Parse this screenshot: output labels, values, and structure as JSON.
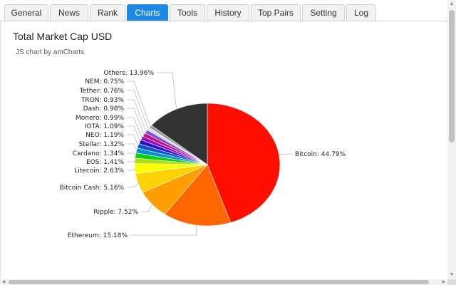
{
  "tabs": [
    {
      "label": "General",
      "active": false
    },
    {
      "label": "News",
      "active": false
    },
    {
      "label": "Rank",
      "active": false
    },
    {
      "label": "Charts",
      "active": true
    },
    {
      "label": "Tools",
      "active": false
    },
    {
      "label": "History",
      "active": false
    },
    {
      "label": "Top Pairs",
      "active": false
    },
    {
      "label": "Setting",
      "active": false
    },
    {
      "label": "Log",
      "active": false
    }
  ],
  "chart": {
    "title": "Total Market Cap USD",
    "subtitle": "JS chart by amCharts"
  },
  "chart_data": {
    "type": "pie",
    "title": "Total Market Cap USD",
    "unit": "%",
    "categories": [
      "Bitcoin",
      "Ethereum",
      "Ripple",
      "Bitcoin Cash",
      "Litecoin",
      "EOS",
      "Cardano",
      "Stellar",
      "NEO",
      "IOTA",
      "Monero",
      "Dash",
      "TRON",
      "Tether",
      "NEM",
      "Others"
    ],
    "values": [
      44.79,
      15.18,
      7.52,
      5.16,
      2.63,
      1.41,
      1.34,
      1.32,
      1.19,
      1.09,
      0.99,
      0.98,
      0.93,
      0.76,
      0.75,
      13.96
    ],
    "labels": [
      "Bitcoin: 44.79%",
      "Ethereum: 15.18%",
      "Ripple: 7.52%",
      "Bitcoin Cash: 5.16%",
      "Litecoin: 2.63%",
      "EOS: 1.41%",
      "Cardano: 1.34%",
      "Stellar: 1.32%",
      "NEO: 1.19%",
      "IOTA: 1.09%",
      "Monero: 0.99%",
      "Dash: 0.98%",
      "TRON: 0.93%",
      "Tether: 0.76%",
      "NEM: 0.75%",
      "Others: 13.96%"
    ],
    "colors": [
      "#ff0f00",
      "#ff6600",
      "#ff9e01",
      "#fcd202",
      "#f8ff01",
      "#b0de09",
      "#04d215",
      "#0d8ecf",
      "#0d52d1",
      "#2a0cd0",
      "#8a0ccf",
      "#cd0d74",
      "#754deb",
      "#dddddd",
      "#999999",
      "#333333"
    ]
  },
  "icons": {
    "scroll_up": "▲",
    "scroll_down": "▼",
    "scroll_left": "◀",
    "scroll_right": "▶"
  }
}
